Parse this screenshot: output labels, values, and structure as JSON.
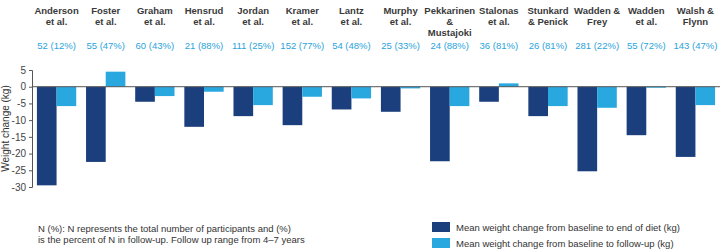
{
  "chart_data": {
    "type": "bar",
    "y_label": "Weight change (kg)",
    "categories": [
      "Anderson et al.",
      "Foster et al.",
      "Graham et al.",
      "Hensrud et al.",
      "Jordan et al.",
      "Kramer et al.",
      "Lantz et al.",
      "Murphy et al.",
      "Pekkarinen & Mustajoki",
      "Stalonas et al.",
      "Stunkard & Penick",
      "Wadden & Frey",
      "Wadden et al.",
      "Walsh & Flynn"
    ],
    "sample_labels": [
      "52 (12%)",
      "55 (47%)",
      "60 (43%)",
      "21 (88%)",
      "111 (25%)",
      "152 (77%)",
      "54 (48%)",
      "25 (33%)",
      "24 (88%)",
      "36 (81%)",
      "26 (81%)",
      "281 (22%)",
      "55 (72%)",
      "143 (47%)"
    ],
    "series": [
      {
        "name": "Mean weight change from baseline to end of diet (kg)",
        "color": "#1b3f7c",
        "values": [
          -29.5,
          -22.5,
          -4.5,
          -12,
          -8.8,
          -11.5,
          -6.8,
          -7.5,
          -22.3,
          -4.5,
          -8.8,
          -25.3,
          -14.5,
          -21
        ]
      },
      {
        "name": "Mean weight change from baseline to follow-up (kg)",
        "color": "#29a8e0",
        "values": [
          -5.8,
          4.5,
          -2.8,
          -1.5,
          -5.5,
          -3,
          -3.5,
          -0.5,
          -5.8,
          1,
          -5.8,
          -6.3,
          -0.3,
          -5.5
        ]
      }
    ],
    "ylim": [
      -30,
      5
    ],
    "yticks": [
      5,
      0,
      -5,
      -10,
      -15,
      -20,
      -25,
      -30
    ],
    "grid": false,
    "legend": "bottom-right",
    "note": [
      "N (%): N represents the total number of participants and (%)",
      "is the percent of N in follow-up. Follow up range from 4–7 years"
    ]
  }
}
